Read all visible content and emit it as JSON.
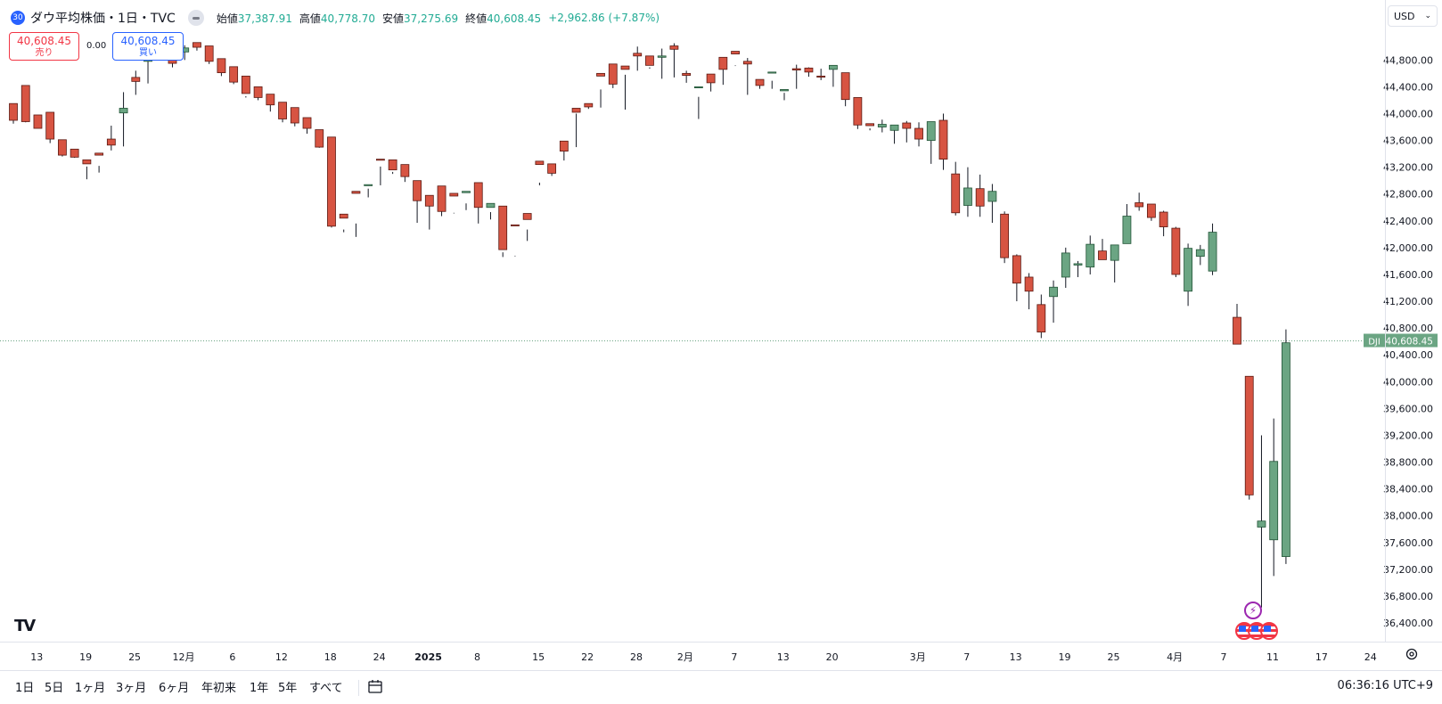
{
  "header": {
    "badge": "30",
    "title": "ダウ平均株価・1日・TVC",
    "open_label": "始値",
    "open": "37,387.91",
    "high_label": "高値",
    "high": "40,778.70",
    "low_label": "安値",
    "low": "37,275.69",
    "close_label": "終値",
    "close": "40,608.45",
    "change": "+2,962.86 (+7.87%)"
  },
  "trade": {
    "sell_price": "40,608.45",
    "sell_label": "売り",
    "spread": "0.00",
    "buy_price": "40,608.45",
    "buy_label": "買い"
  },
  "currency": "USD",
  "price_tag": {
    "symbol": "DJI",
    "value": "40,608.45"
  },
  "ranges": [
    "1日",
    "5日",
    "1ヶ月",
    "3ヶ月",
    "6ヶ月",
    "年初来",
    "1年",
    "5年",
    "すべて"
  ],
  "clock": "06:36:16 UTC+9",
  "colors": {
    "up": "#6ba583",
    "down": "#d75442",
    "up_border": "#225437",
    "down_border": "#5b1a13",
    "accent": "#2962ff"
  },
  "chart_data": {
    "type": "candlestick",
    "y_ticks": [
      36400,
      36800,
      37200,
      37600,
      38000,
      38400,
      38800,
      39200,
      39600,
      40000,
      40400,
      40800,
      41200,
      41600,
      42000,
      42400,
      42800,
      43200,
      43600,
      44000,
      44400,
      44800
    ],
    "y_tick_labels": [
      "36,400.00",
      "36,800.00",
      "37,200.00",
      "37,600.00",
      "38,000.00",
      "38,400.00",
      "38,800.00",
      "39,200.00",
      "39,600.00",
      "40,000.00",
      "40,400.00",
      "40,800.00",
      "41,200.00",
      "41,600.00",
      "42,000.00",
      "42,400.00",
      "42,800.00",
      "43,200.00",
      "43,600.00",
      "44,000.00",
      "44,400.00",
      "44,800.00"
    ],
    "x_ticks": [
      {
        "label": "13",
        "i": 1,
        "bold": false
      },
      {
        "label": "19",
        "i": 5,
        "bold": false
      },
      {
        "label": "25",
        "i": 9,
        "bold": false
      },
      {
        "label": "12月",
        "i": 13,
        "bold": false
      },
      {
        "label": "6",
        "i": 17,
        "bold": false
      },
      {
        "label": "12",
        "i": 21,
        "bold": false
      },
      {
        "label": "18",
        "i": 25,
        "bold": false
      },
      {
        "label": "24",
        "i": 29,
        "bold": false
      },
      {
        "label": "2025",
        "i": 33,
        "bold": true
      },
      {
        "label": "8",
        "i": 37,
        "bold": false
      },
      {
        "label": "15",
        "i": 42,
        "bold": false
      },
      {
        "label": "22",
        "i": 46,
        "bold": false
      },
      {
        "label": "28",
        "i": 50,
        "bold": false
      },
      {
        "label": "2月",
        "i": 54,
        "bold": false
      },
      {
        "label": "7",
        "i": 58,
        "bold": false
      },
      {
        "label": "13",
        "i": 62,
        "bold": false
      },
      {
        "label": "20",
        "i": 66,
        "bold": false
      },
      {
        "label": "3月",
        "i": 73,
        "bold": false
      },
      {
        "label": "7",
        "i": 77,
        "bold": false
      },
      {
        "label": "13",
        "i": 81,
        "bold": false
      },
      {
        "label": "19",
        "i": 85,
        "bold": false
      },
      {
        "label": "25",
        "i": 89,
        "bold": false
      },
      {
        "label": "4月",
        "i": 94,
        "bold": false
      },
      {
        "label": "7",
        "i": 98,
        "bold": false
      },
      {
        "label": "11",
        "i": 102,
        "bold": false
      },
      {
        "label": "17",
        "i": 106,
        "bold": false
      },
      {
        "label": "24",
        "i": 110,
        "bold": false
      }
    ],
    "current_price": 40608.45,
    "candles": [
      [
        44100,
        44150,
        43900,
        43850,
        43980
      ],
      [
        44380,
        44420,
        43880,
        43870,
        43920
      ],
      [
        43900,
        43980,
        43780,
        43860,
        43800
      ],
      [
        43980,
        44020,
        43620,
        43560,
        43640
      ],
      [
        43570,
        43610,
        43380,
        43360,
        43430
      ],
      [
        43400,
        43470,
        43350,
        43340,
        43380
      ],
      [
        43230,
        43310,
        43250,
        43210,
        43020
      ],
      [
        43260,
        43410,
        43380,
        43120,
        43220
      ],
      [
        43530,
        43620,
        43530,
        43450,
        43820
      ],
      [
        43900,
        44010,
        44080,
        43510,
        44320
      ],
      [
        44350,
        44540,
        44480,
        44280,
        44640
      ],
      [
        44660,
        44780,
        44850,
        44450,
        44960
      ],
      [
        44950,
        45010,
        44900,
        44880,
        44990
      ],
      [
        44780,
        44920,
        44750,
        44690,
        44840
      ],
      [
        44870,
        44920,
        44980,
        44800,
        45020
      ],
      [
        44990,
        45060,
        44990,
        44940,
        45030
      ],
      [
        44990,
        45010,
        44780,
        44740,
        44790
      ],
      [
        44780,
        44820,
        44610,
        44560,
        44640
      ],
      [
        44630,
        44700,
        44470,
        44440,
        44520
      ],
      [
        44520,
        44560,
        44300,
        44240,
        44260
      ],
      [
        44300,
        44400,
        44240,
        44200,
        44360
      ],
      [
        44230,
        44290,
        44130,
        44030,
        44180
      ],
      [
        44130,
        44170,
        43920,
        43870,
        43940
      ],
      [
        43990,
        44090,
        43860,
        43810,
        43890
      ],
      [
        43880,
        43940,
        43780,
        43700,
        43830
      ],
      [
        43740,
        43760,
        43500,
        43490,
        43560
      ],
      [
        43500,
        43650,
        42320,
        42300,
        42330
      ],
      [
        42300,
        42500,
        42440,
        42230,
        42270
      ],
      [
        42300,
        42840,
        42810,
        42160,
        42360
      ],
      [
        42800,
        42940,
        42940,
        42750,
        42880
      ],
      [
        42960,
        43320,
        43310,
        42930,
        43210
      ],
      [
        43300,
        43310,
        43160,
        43130,
        43100
      ],
      [
        43210,
        43240,
        43060,
        42980,
        43060
      ],
      [
        42980,
        43000,
        42700,
        42370,
        42740
      ],
      [
        42710,
        42780,
        42620,
        42270,
        42750
      ],
      [
        42730,
        42920,
        42540,
        42470,
        42690
      ],
      [
        42590,
        42810,
        42770,
        42510,
        42520
      ],
      [
        42740,
        42820,
        42840,
        42560,
        42660
      ],
      [
        42830,
        42970,
        42600,
        42360,
        42770
      ],
      [
        42580,
        42600,
        42660,
        42420,
        42530
      ],
      [
        42600,
        42620,
        41970,
        41860,
        41930
      ],
      [
        41960,
        42340,
        42330,
        41880,
        41870
      ],
      [
        42240,
        42510,
        42420,
        42100,
        42270
      ],
      [
        42960,
        43290,
        43240,
        42970,
        42930
      ],
      [
        43250,
        43250,
        43110,
        43070,
        43130
      ],
      [
        43320,
        43590,
        43440,
        43300,
        43490
      ],
      [
        43520,
        44080,
        44020,
        43500,
        44000
      ],
      [
        44150,
        44150,
        44100,
        44070,
        44130
      ],
      [
        44100,
        44600,
        44560,
        44090,
        44360
      ],
      [
        44530,
        44740,
        44440,
        44380,
        44540
      ],
      [
        44100,
        44710,
        44660,
        44060,
        44580
      ],
      [
        44750,
        44900,
        44860,
        44640,
        45000
      ],
      [
        44830,
        44860,
        44720,
        44690,
        44670
      ],
      [
        44520,
        44840,
        44860,
        44520,
        44970
      ],
      [
        44930,
        45010,
        44960,
        44540,
        45050
      ],
      [
        44570,
        44600,
        44570,
        44460,
        44640
      ],
      [
        44310,
        44400,
        44400,
        43920,
        44250
      ],
      [
        44550,
        44590,
        44460,
        44330,
        44560
      ],
      [
        44640,
        44840,
        44660,
        44430,
        44700
      ],
      [
        44920,
        44930,
        44890,
        44720,
        44710
      ],
      [
        44670,
        44780,
        44740,
        44280,
        44830
      ],
      [
        44440,
        44510,
        44420,
        44370,
        44510
      ],
      [
        44460,
        44610,
        44620,
        44370,
        44490
      ],
      [
        44350,
        44340,
        44360,
        44310,
        44200
      ],
      [
        44400,
        44670,
        44650,
        44370,
        44730
      ],
      [
        44670,
        44680,
        44620,
        44550,
        44690
      ],
      [
        44560,
        44560,
        44550,
        44500,
        44670
      ],
      [
        44560,
        44660,
        44720,
        44400,
        44660
      ],
      [
        44600,
        44610,
        44210,
        44110,
        44490
      ],
      [
        44190,
        44240,
        43830,
        43770,
        44210
      ],
      [
        43760,
        43850,
        43820,
        43750,
        43780
      ],
      [
        43760,
        43800,
        43840,
        43720,
        43910
      ],
      [
        43650,
        43750,
        43830,
        43550,
        43810
      ],
      [
        43780,
        43860,
        43780,
        43570,
        43890
      ],
      [
        43750,
        43780,
        43620,
        43510,
        43870
      ],
      [
        43300,
        43600,
        43880,
        43250,
        43880
      ],
      [
        43900,
        43900,
        43320,
        43160,
        44000
      ],
      [
        43260,
        43100,
        42520,
        42480,
        43280
      ],
      [
        42500,
        42630,
        42890,
        42460,
        43200
      ],
      [
        42860,
        42880,
        42620,
        42460,
        43090
      ],
      [
        42560,
        42690,
        42840,
        42370,
        42950
      ],
      [
        42450,
        42500,
        41850,
        41770,
        42540
      ],
      [
        41870,
        41880,
        41470,
        41200,
        41900
      ],
      [
        41520,
        41560,
        41350,
        41080,
        41620
      ],
      [
        41220,
        41150,
        40740,
        40650,
        41300
      ],
      [
        41000,
        41270,
        41410,
        40880,
        41510
      ],
      [
        41580,
        41560,
        41920,
        41400,
        42000
      ],
      [
        41820,
        41740,
        41760,
        41560,
        41800
      ],
      [
        41690,
        41710,
        42050,
        41600,
        42180
      ],
      [
        41980,
        41950,
        41820,
        41840,
        42130
      ],
      [
        41700,
        41810,
        42040,
        41480,
        42030
      ],
      [
        42170,
        42060,
        42470,
        42190,
        42650
      ],
      [
        42630,
        42670,
        42610,
        42550,
        42820
      ],
      [
        42570,
        42650,
        42450,
        42400,
        42640
      ],
      [
        42440,
        42530,
        42310,
        42170,
        42550
      ],
      [
        42280,
        42290,
        41600,
        41560,
        42310
      ],
      [
        41300,
        41350,
        41990,
        41130,
        42060
      ],
      [
        41850,
        41870,
        41970,
        41740,
        42040
      ],
      [
        41700,
        41650,
        42230,
        41590,
        42360
      ],
      null,
      [
        40990,
        40960,
        40560,
        40570,
        41160
      ],
      [
        39860,
        40080,
        38310,
        38240,
        40080
      ],
      [
        37810,
        37830,
        37920,
        36630,
        39200
      ],
      [
        37570,
        37640,
        38810,
        37100,
        39450
      ],
      [
        37360,
        37390,
        40580,
        37280,
        40780
      ]
    ]
  }
}
